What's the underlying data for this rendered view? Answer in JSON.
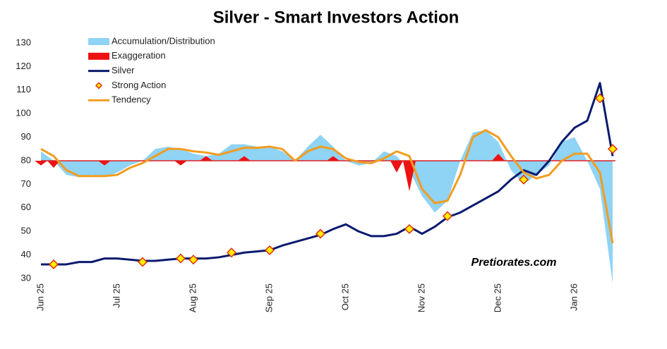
{
  "chart_data": {
    "type": "line",
    "title": "Silver - Smart Investors Action",
    "watermark": "Pretiorates.com",
    "categories": [
      "Jun 25",
      null,
      null,
      null,
      null,
      null,
      "Jul 25",
      null,
      null,
      null,
      null,
      null,
      "Aug 25",
      null,
      null,
      null,
      null,
      null,
      "Sep 25",
      null,
      null,
      null,
      null,
      null,
      "Oct 25",
      null,
      null,
      null,
      null,
      null,
      "Nov 25",
      null,
      null,
      null,
      null,
      null,
      "Dec 25",
      null,
      null,
      null,
      null,
      null,
      "Jan 26",
      null,
      null,
      null
    ],
    "ylim": [
      30,
      130
    ],
    "yticks": [
      30,
      40,
      50,
      60,
      70,
      80,
      90,
      100,
      110,
      120,
      130
    ],
    "baseline": 80,
    "baseline_color": "#e02020",
    "series": [
      {
        "name": "Accumulation/Distribution",
        "kind": "area",
        "color": "#8fd3f5",
        "values": [
          84,
          80,
          74,
          73,
          74,
          73,
          75,
          78,
          80,
          85,
          86,
          85,
          83,
          82,
          83,
          87,
          87,
          86,
          86,
          84,
          80,
          86,
          91,
          86,
          80,
          78,
          79,
          84,
          82,
          76,
          65,
          58,
          63,
          80,
          92,
          93,
          88,
          76,
          70,
          74,
          78,
          88,
          90,
          80,
          68,
          28
        ]
      },
      {
        "name": "Exaggeration",
        "kind": "spike",
        "color": "#ee1111",
        "values": [
          78,
          77,
          null,
          null,
          null,
          78,
          null,
          null,
          null,
          null,
          null,
          78,
          null,
          82,
          null,
          null,
          82,
          null,
          null,
          null,
          null,
          null,
          null,
          82,
          null,
          null,
          null,
          null,
          75,
          67,
          null,
          null,
          null,
          null,
          null,
          null,
          83,
          null,
          null,
          null,
          null,
          null,
          null,
          null,
          null,
          null
        ]
      },
      {
        "name": "Silver",
        "kind": "line",
        "color": "#0a1a6e",
        "values": [
          36,
          36,
          36,
          37,
          37,
          38.5,
          38.5,
          38,
          37.5,
          37.5,
          38,
          38.5,
          38.5,
          38.5,
          39,
          40,
          41,
          41.5,
          42,
          44,
          45.5,
          47,
          48.5,
          51,
          53,
          50,
          48,
          48,
          49,
          52,
          49,
          52,
          56,
          58,
          61,
          64,
          67,
          72,
          76,
          74,
          80,
          88,
          94,
          97,
          113,
          82
        ]
      },
      {
        "name": "Strong Action",
        "kind": "marker",
        "color": "#ffee00",
        "edge": "#e03010",
        "values": [
          null,
          36,
          null,
          null,
          null,
          null,
          null,
          null,
          37,
          null,
          null,
          38.5,
          38,
          null,
          null,
          41,
          null,
          null,
          42,
          null,
          null,
          null,
          49,
          null,
          null,
          null,
          null,
          null,
          null,
          51,
          null,
          null,
          56.5,
          null,
          null,
          null,
          null,
          null,
          72,
          null,
          null,
          null,
          null,
          null,
          106.5,
          85
        ]
      },
      {
        "name": "Tendency",
        "kind": "line",
        "color": "#f39c1f",
        "values": [
          85,
          82,
          76,
          73.5,
          73.5,
          73.5,
          74,
          77,
          79,
          82,
          85,
          85,
          84,
          83.5,
          82.5,
          84,
          85.5,
          85.5,
          86,
          85,
          80,
          84,
          86,
          85,
          81,
          79.5,
          79,
          81,
          84,
          82,
          68,
          62,
          63,
          74,
          90,
          93,
          90,
          82,
          75,
          72.5,
          74,
          80,
          83,
          83,
          75,
          45
        ]
      }
    ]
  }
}
